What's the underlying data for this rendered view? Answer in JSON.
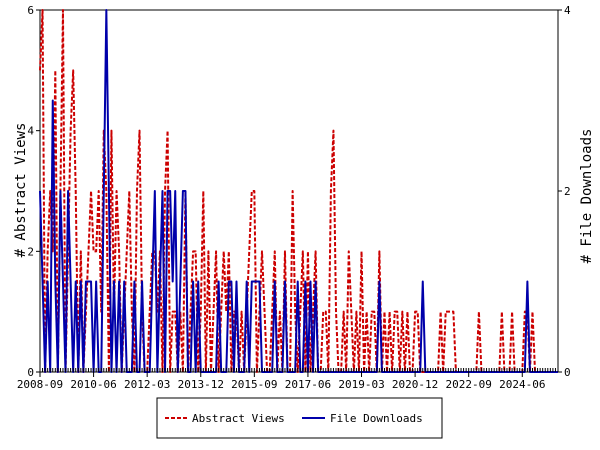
{
  "chart_data": {
    "type": "line",
    "x": [
      "2008-09",
      "2008-10",
      "2008-11",
      "2008-12",
      "2009-01",
      "2009-02",
      "2009-03",
      "2009-04",
      "2009-05",
      "2009-06",
      "2009-07",
      "2009-08",
      "2009-09",
      "2009-10",
      "2009-11",
      "2009-12",
      "2010-01",
      "2010-02",
      "2010-03",
      "2010-04",
      "2010-05",
      "2010-06",
      "2010-07",
      "2010-08",
      "2010-09",
      "2010-10",
      "2010-11",
      "2010-12",
      "2011-01",
      "2011-02",
      "2011-03",
      "2011-04",
      "2011-05",
      "2011-06",
      "2011-07",
      "2011-08",
      "2011-09",
      "2011-10",
      "2011-11",
      "2011-12",
      "2012-01",
      "2012-02",
      "2012-03",
      "2012-04",
      "2012-05",
      "2012-06",
      "2012-07",
      "2012-08",
      "2012-09",
      "2012-10",
      "2012-11",
      "2012-12",
      "2013-01",
      "2013-02",
      "2013-03",
      "2013-04",
      "2013-05",
      "2013-06",
      "2013-07",
      "2013-08",
      "2013-09",
      "2013-10",
      "2013-11",
      "2013-12",
      "2014-01",
      "2014-02",
      "2014-03",
      "2014-04",
      "2014-05",
      "2014-06",
      "2014-07",
      "2014-08",
      "2014-09",
      "2014-10",
      "2014-11",
      "2014-12",
      "2015-01",
      "2015-02",
      "2015-03",
      "2015-04",
      "2015-05",
      "2015-06",
      "2015-07",
      "2015-08",
      "2015-09",
      "2015-10",
      "2015-11",
      "2015-12",
      "2016-01",
      "2016-02",
      "2016-03",
      "2016-04",
      "2016-05",
      "2016-06",
      "2016-07",
      "2016-08",
      "2016-09",
      "2016-10",
      "2016-11",
      "2016-12",
      "2017-01",
      "2017-02",
      "2017-03",
      "2017-04",
      "2017-05",
      "2017-06",
      "2017-07",
      "2017-08",
      "2017-09",
      "2017-10",
      "2017-11",
      "2017-12",
      "2018-01",
      "2018-02",
      "2018-03",
      "2018-04",
      "2018-05",
      "2018-06",
      "2018-07",
      "2018-08",
      "2018-09",
      "2018-10",
      "2018-11",
      "2018-12",
      "2019-01",
      "2019-02",
      "2019-03",
      "2019-04",
      "2019-05",
      "2019-06",
      "2019-07",
      "2019-08",
      "2019-09",
      "2019-10",
      "2019-11",
      "2019-12",
      "2020-01",
      "2020-02",
      "2020-03",
      "2020-04",
      "2020-05",
      "2020-06",
      "2020-07",
      "2020-08",
      "2020-09",
      "2020-10",
      "2020-11",
      "2020-12",
      "2021-01",
      "2021-02",
      "2021-03",
      "2021-04",
      "2021-05",
      "2021-06",
      "2021-07",
      "2021-08",
      "2021-09",
      "2021-10",
      "2021-11",
      "2021-12",
      "2022-01",
      "2022-02",
      "2022-03",
      "2022-04",
      "2022-05",
      "2022-06",
      "2022-07",
      "2022-08",
      "2022-09",
      "2022-10",
      "2022-11",
      "2022-12",
      "2023-01",
      "2023-02",
      "2023-03",
      "2023-04",
      "2023-05",
      "2023-06",
      "2023-07",
      "2023-08",
      "2023-09",
      "2023-10",
      "2023-11",
      "2023-12",
      "2024-01",
      "2024-02",
      "2024-03",
      "2024-04",
      "2024-05",
      "2024-06",
      "2024-07",
      "2024-08",
      "2024-09",
      "2024-10",
      "2024-11",
      "2024-12",
      "2025-01",
      "2025-02",
      "2025-03",
      "2025-04",
      "2025-05",
      "2025-06",
      "2025-07",
      "2025-08"
    ],
    "series": [
      {
        "name": "Abstract Views",
        "axis": "left",
        "color": "#cc0000",
        "dash": "dashed",
        "values": [
          5,
          6,
          0,
          2,
          3,
          2,
          5,
          0,
          3,
          6,
          0,
          2,
          4,
          5,
          3,
          0,
          2,
          0,
          1,
          2,
          3,
          2,
          2,
          3,
          1,
          4,
          3,
          0,
          4,
          1,
          3,
          2,
          0,
          1,
          2,
          3,
          1,
          0,
          3,
          4,
          1,
          0,
          0,
          1,
          2,
          2,
          1,
          2,
          0,
          3,
          4,
          0,
          1,
          1,
          0,
          1,
          0,
          3,
          0,
          1,
          2,
          2,
          0,
          1,
          3,
          0,
          2,
          0,
          1,
          2,
          0,
          1,
          2,
          1,
          2,
          0,
          1,
          1,
          0,
          1,
          0,
          1,
          2,
          3,
          3,
          0,
          1,
          2,
          1,
          0,
          0,
          1,
          2,
          0,
          1,
          0,
          2,
          0,
          0,
          3,
          1,
          0,
          1,
          2,
          0,
          2,
          0,
          1,
          2,
          0,
          0,
          1,
          1,
          0,
          3,
          4,
          1,
          0,
          0,
          1,
          0,
          2,
          1,
          0,
          1,
          0,
          2,
          0,
          1,
          0,
          1,
          1,
          0,
          2,
          0,
          1,
          0,
          1,
          0,
          1,
          1,
          0,
          1,
          0,
          1,
          0,
          0,
          1,
          1,
          0,
          0,
          0,
          0,
          0,
          0,
          0,
          0,
          1,
          0,
          1,
          1,
          1,
          1,
          0,
          0,
          0,
          0,
          0,
          0,
          0,
          0,
          0,
          1,
          0,
          0,
          0,
          0,
          0,
          0,
          0,
          0,
          1,
          0,
          0,
          0,
          1,
          0,
          0,
          0,
          0,
          1,
          1,
          0,
          1,
          0,
          0,
          0,
          0,
          0,
          0,
          0,
          0,
          0,
          0
        ]
      },
      {
        "name": "File Downloads",
        "axis": "right",
        "color": "#0000aa",
        "dash": "solid",
        "values": [
          2,
          1,
          0,
          1,
          0,
          3,
          1,
          0,
          2,
          1,
          0,
          2,
          1,
          0,
          1,
          0,
          1,
          0,
          1,
          1,
          1,
          0,
          1,
          0,
          0,
          2,
          4,
          2,
          0,
          1,
          0,
          1,
          0,
          1,
          0,
          0,
          0,
          1,
          0,
          0,
          1,
          0,
          0,
          0,
          1,
          2,
          0,
          1,
          2,
          0,
          2,
          2,
          1,
          2,
          0,
          1,
          2,
          2,
          0,
          0,
          1,
          0,
          1,
          0,
          0,
          0,
          0,
          0,
          0,
          0,
          1,
          0,
          0,
          0,
          1,
          1,
          0,
          1,
          0,
          0,
          0,
          1,
          0,
          1,
          1,
          1,
          1,
          0,
          0,
          0,
          0,
          0,
          1,
          0,
          0,
          0,
          1,
          0,
          0,
          0,
          0,
          1,
          0,
          0,
          1,
          0,
          1,
          0,
          1,
          0,
          0,
          0,
          0,
          0,
          0,
          0,
          0,
          0,
          0,
          0,
          0,
          0,
          0,
          0,
          0,
          0,
          0,
          0,
          0,
          0,
          0,
          0,
          0,
          1,
          0,
          0,
          0,
          0,
          0,
          0,
          0,
          0,
          0,
          0,
          0,
          0,
          0,
          0,
          0,
          0,
          1,
          0,
          0,
          0,
          0,
          0,
          0,
          0,
          0,
          0,
          0,
          0,
          0,
          0,
          0,
          0,
          0,
          0,
          0,
          0,
          0,
          0,
          0,
          0,
          0,
          0,
          0,
          0,
          0,
          0,
          0,
          0,
          0,
          0,
          0,
          0,
          0,
          0,
          0,
          0,
          0,
          1,
          0,
          0,
          0,
          0,
          0,
          0,
          0,
          0,
          0,
          0,
          0,
          0
        ]
      }
    ],
    "xticks": [
      "2008-09",
      "2010-06",
      "2012-03",
      "2013-12",
      "2015-09",
      "2017-06",
      "2019-03",
      "2020-12",
      "2022-09",
      "2024-06"
    ],
    "ylabel": "# Abstract Views",
    "y2label": "# File Downloads",
    "ylim": [
      0,
      6
    ],
    "yticks": [
      0,
      2,
      4,
      6
    ],
    "y2lim": [
      0,
      4
    ],
    "y2ticks": [
      0,
      2,
      4
    ],
    "grid": false,
    "legend": "bottom"
  }
}
